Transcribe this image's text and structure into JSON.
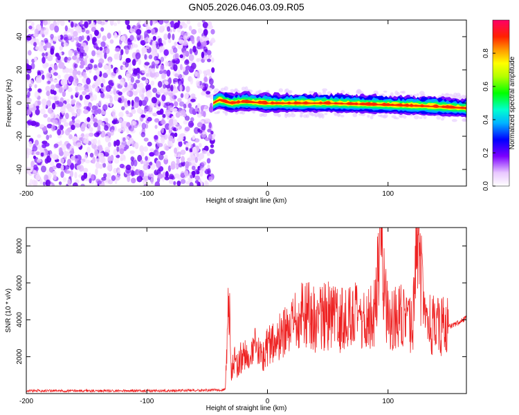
{
  "title": "GN05.2026.046.03.09.R05",
  "chart_data": [
    {
      "type": "heatmap",
      "title": "GN05.2026.046.03.09.R05",
      "xlabel": "Height of straight line (km)",
      "ylabel": "Frequency (Hz)",
      "xlim": [
        -200,
        165
      ],
      "ylim": [
        -50,
        50
      ],
      "x_ticks": [
        "-200",
        "-100",
        "0",
        "100"
      ],
      "x_tick_values": [
        -200,
        -100,
        0,
        100
      ],
      "y_ticks": [
        "40",
        "20",
        "0",
        "-20",
        "-40"
      ],
      "y_tick_values": [
        40,
        20,
        0,
        -20,
        -40
      ],
      "noise_region_x": [
        -200,
        -45
      ],
      "signal_onset_x": -45,
      "signal_band_hz": [
        -6,
        6
      ],
      "signal_center_hz": [
        {
          "x": -45,
          "f": 0
        },
        {
          "x": -40,
          "f": 2
        },
        {
          "x": -30,
          "f": 0
        },
        {
          "x": -20,
          "f": 1
        },
        {
          "x": 0,
          "f": 0
        },
        {
          "x": 50,
          "f": 0
        },
        {
          "x": 100,
          "f": -1
        },
        {
          "x": 140,
          "f": -2
        },
        {
          "x": 165,
          "f": -3
        }
      ],
      "colorbar": {
        "label": "Normalized spectral amplitude",
        "range": [
          0,
          1
        ],
        "ticks": [
          "0.0",
          "0.2",
          "0.4",
          "0.6",
          "0.8"
        ],
        "tick_values": [
          0.0,
          0.2,
          0.4,
          0.6,
          0.8
        ]
      }
    },
    {
      "type": "line",
      "xlabel": "Height of straight line (km)",
      "ylabel": "SNR (10 * v/v)",
      "xlim": [
        -200,
        165
      ],
      "ylim": [
        0,
        9000
      ],
      "x_ticks": [
        "-200",
        "-100",
        "0",
        "100"
      ],
      "x_tick_values": [
        -200,
        -100,
        0,
        100
      ],
      "y_ticks": [
        "8000",
        "6000",
        "4000",
        "2000"
      ],
      "y_tick_values": [
        8000,
        6000,
        4000,
        2000
      ],
      "series": [
        {
          "name": "SNR",
          "color": "#ee2222",
          "x": [
            -200,
            -150,
            -100,
            -50,
            -35,
            -32,
            -30,
            -28,
            -25,
            -20,
            -15,
            -10,
            -5,
            0,
            10,
            20,
            30,
            40,
            50,
            60,
            70,
            80,
            90,
            93,
            100,
            110,
            120,
            125,
            130,
            140,
            150,
            160,
            165
          ],
          "y": [
            150,
            150,
            150,
            180,
            200,
            5300,
            900,
            2000,
            1500,
            2300,
            1700,
            2500,
            2000,
            2600,
            3000,
            3500,
            4500,
            4000,
            4200,
            4000,
            4300,
            3800,
            4600,
            9000,
            4000,
            4200,
            3500,
            8600,
            3800,
            3700,
            3600,
            3900,
            4100
          ]
        }
      ]
    }
  ]
}
